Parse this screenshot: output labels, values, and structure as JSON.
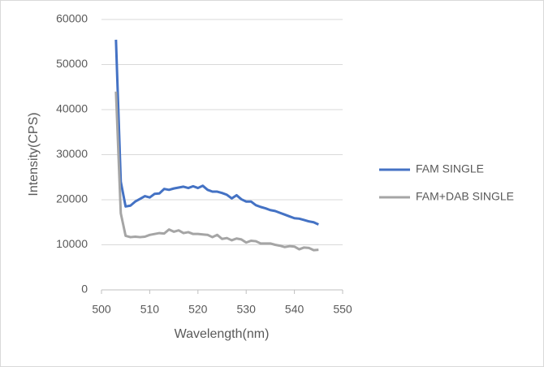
{
  "chart_data": {
    "type": "line",
    "x_label": "Wavelength(nm)",
    "y_label": "Intensity(CPS)",
    "x": [
      503,
      504,
      505,
      506,
      507,
      508,
      509,
      510,
      511,
      512,
      513,
      514,
      515,
      516,
      517,
      518,
      519,
      520,
      521,
      522,
      523,
      524,
      525,
      526,
      527,
      528,
      529,
      530,
      531,
      532,
      533,
      534,
      535,
      536,
      537,
      538,
      539,
      540,
      541,
      542,
      543,
      544,
      545
    ],
    "series": [
      {
        "name": "FAM SINGLE",
        "color": "#4472c4",
        "values": [
          55500,
          24000,
          18500,
          18700,
          19600,
          20200,
          20800,
          20500,
          21300,
          21400,
          22400,
          22200,
          22500,
          22700,
          22900,
          22600,
          23000,
          22600,
          23100,
          22200,
          21800,
          21800,
          21500,
          21100,
          20300,
          21000,
          20100,
          19600,
          19600,
          18800,
          18400,
          18100,
          17700,
          17500,
          17100,
          16700,
          16300,
          15900,
          15800,
          15500,
          15200,
          15000,
          14500
        ]
      },
      {
        "name": "FAM+DAB SINGLE",
        "color": "#a5a5a5",
        "values": [
          44000,
          17000,
          12000,
          11700,
          11800,
          11700,
          11800,
          12200,
          12400,
          12600,
          12500,
          13400,
          12900,
          13200,
          12600,
          12800,
          12400,
          12400,
          12300,
          12200,
          11700,
          12200,
          11300,
          11500,
          11000,
          11400,
          11200,
          10500,
          10900,
          10800,
          10300,
          10300,
          10300,
          10000,
          9800,
          9500,
          9700,
          9600,
          9000,
          9400,
          9300,
          8800,
          8900
        ]
      }
    ],
    "xlim": [
      500,
      550
    ],
    "xticks": [
      500,
      510,
      520,
      530,
      540,
      550
    ],
    "ylim": [
      0,
      60000
    ],
    "yticks": [
      0,
      10000,
      20000,
      30000,
      40000,
      50000,
      60000
    ],
    "grid": true,
    "legend": "right"
  }
}
